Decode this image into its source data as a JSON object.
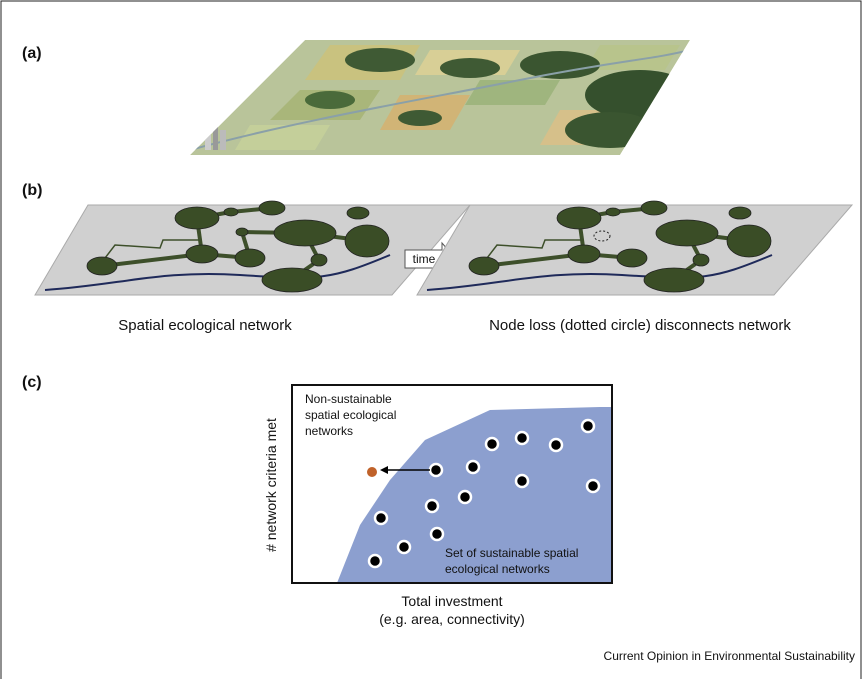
{
  "panel_a": {
    "label": "(a)"
  },
  "panel_b": {
    "label": "(b)",
    "arrow_label": "time",
    "captions": [
      "Spatial ecological network",
      "Node loss (dotted circle) disconnects network"
    ]
  },
  "panel_c": {
    "label": "(c)",
    "y_label": "# network criteria met",
    "x_label": [
      "Total investment",
      "(e.g. area, connectivity)"
    ],
    "outside_note": [
      "Non-sustainable",
      "spatial ecological",
      "networks"
    ],
    "inside_note": [
      "Set of sustainable spatial",
      "ecological networks"
    ]
  },
  "footer": "Current Opinion in Environmental Sustainability"
}
